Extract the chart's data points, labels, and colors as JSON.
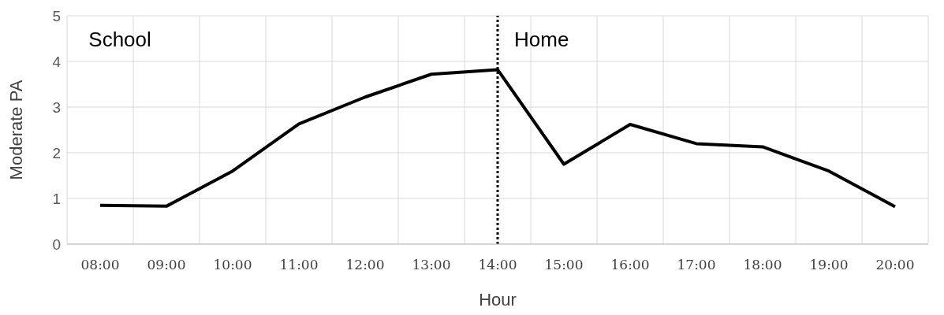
{
  "chart_data": {
    "type": "line",
    "xlabel": "Hour",
    "ylabel": "Moderate PA",
    "categories": [
      "08:00",
      "09:00",
      "10:00",
      "11:00",
      "12:00",
      "13:00",
      "14:00",
      "15:00",
      "16:00",
      "17:00",
      "18:00",
      "19:00",
      "20:00"
    ],
    "series": [
      {
        "color": "#000000",
        "values": [
          0.85,
          0.83,
          1.6,
          2.63,
          3.22,
          3.72,
          3.82,
          1.75,
          2.62,
          2.2,
          2.13,
          1.6,
          0.82
        ]
      }
    ],
    "ylim": [
      0,
      5
    ],
    "yticks": [
      0,
      1,
      2,
      3,
      4,
      5
    ],
    "grid": true,
    "marker": "none",
    "line_style": "solid",
    "ref_lines": [
      {
        "axis": "x",
        "value": "14:00",
        "color": "#000000",
        "line_style": "dotted"
      }
    ],
    "annotations": [
      "School",
      "Home"
    ]
  }
}
